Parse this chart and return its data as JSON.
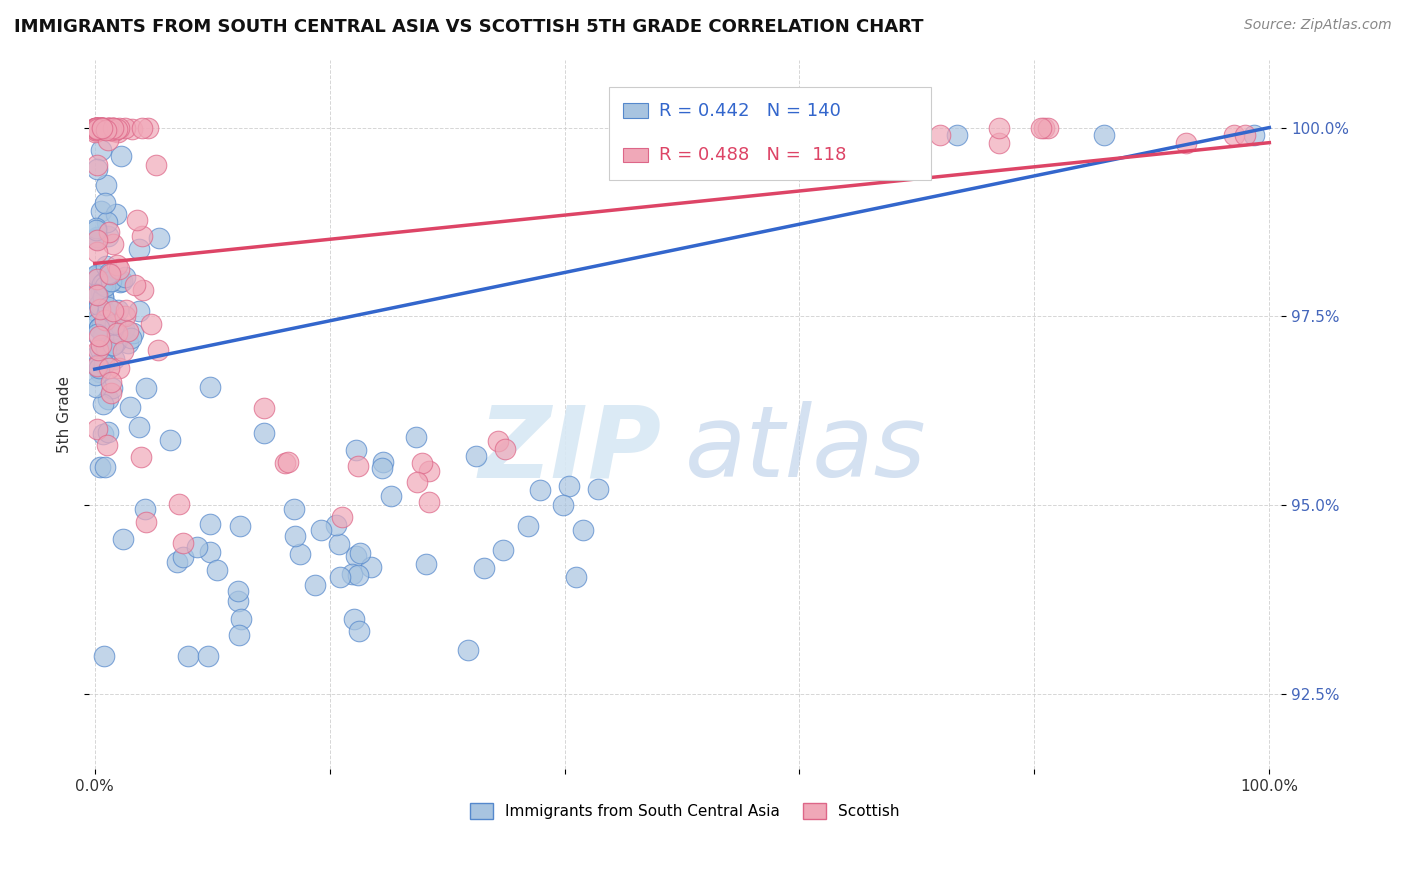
{
  "title": "IMMIGRANTS FROM SOUTH CENTRAL ASIA VS SCOTTISH 5TH GRADE CORRELATION CHART",
  "source": "Source: ZipAtlas.com",
  "ylabel": "5th Grade",
  "legend_blue_label": "Immigrants from South Central Asia",
  "legend_pink_label": "Scottish",
  "blue_R": 0.442,
  "blue_N": 140,
  "pink_R": 0.488,
  "pink_N": 118,
  "blue_color": "#A8C4E0",
  "pink_color": "#F0A8B8",
  "blue_edge": "#5588CC",
  "pink_edge": "#DD6688",
  "blue_line_color": "#3366CC",
  "pink_line_color": "#DD4466",
  "y_ticks": [
    92.5,
    95.0,
    97.5,
    100.0
  ],
  "y_tick_labels": [
    "92.5%",
    "95.0%",
    "97.5%",
    "100.0%"
  ],
  "ylim_min": 91.5,
  "ylim_max": 100.9,
  "xlim_min": -0.005,
  "xlim_max": 1.01,
  "watermark_zip_color": "#D0DCF0",
  "watermark_atlas_color": "#C0D0E8",
  "grid_color": "#CCCCCC",
  "title_color": "#111111",
  "source_color": "#888888",
  "right_tick_color": "#4466BB",
  "title_fontsize": 13,
  "source_fontsize": 10,
  "tick_fontsize": 11,
  "ylabel_fontsize": 11
}
